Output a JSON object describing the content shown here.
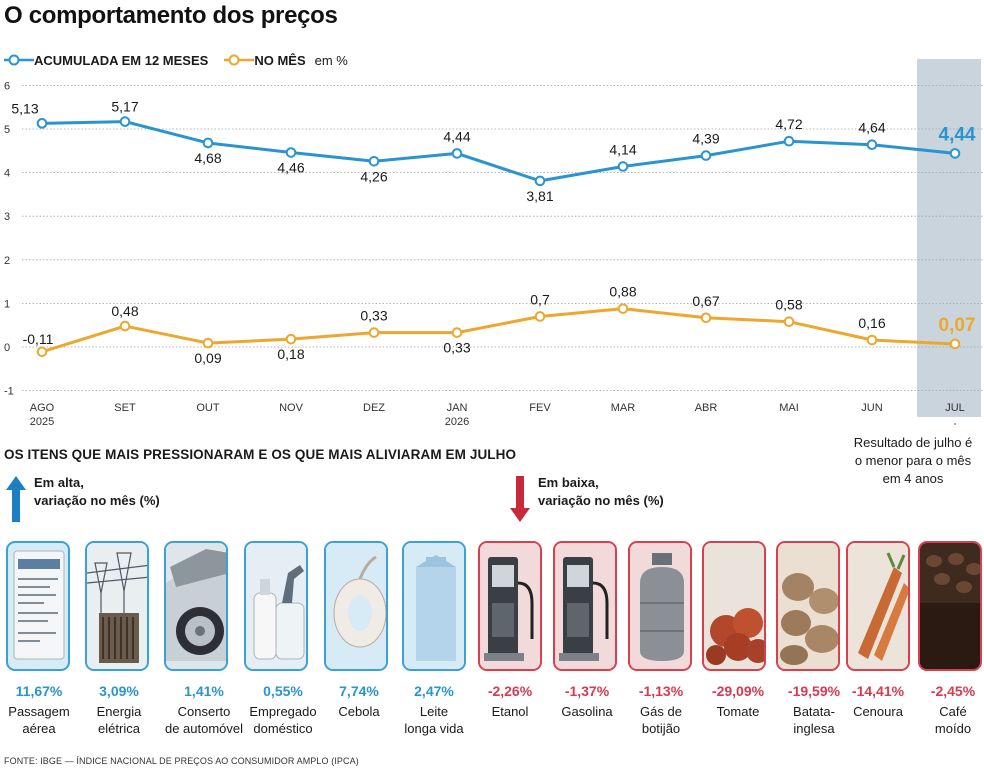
{
  "title": "O comportamento dos preços",
  "legend": {
    "accumulated": "ACUMULADA EM 12 MESES",
    "monthly": "NO MÊS",
    "unit": "em %"
  },
  "colors": {
    "accumulated": "#2a94cf",
    "monthly": "#eda72e",
    "highlight_band": "#c9d4dc",
    "up": "#2a94cf",
    "down": "#d83a4f"
  },
  "chart_data": {
    "type": "line",
    "x": [
      "AGO",
      "SET",
      "OUT",
      "NOV",
      "DEZ",
      "JAN",
      "FEV",
      "MAR",
      "ABR",
      "MAI",
      "JUN",
      "JUL"
    ],
    "x_sublabels": [
      "2025",
      "",
      "",
      "",
      "",
      "2026",
      "",
      "",
      "",
      "",
      "",
      ""
    ],
    "series": [
      {
        "name": "ACUMULADA EM 12 MESES",
        "values": [
          5.13,
          5.17,
          4.68,
          4.46,
          4.26,
          4.44,
          3.81,
          4.14,
          4.39,
          4.72,
          4.64,
          4.44
        ],
        "labels": [
          "5,13",
          "5,17",
          "4,68",
          "4,46",
          "4,26",
          "4,44",
          "3,81",
          "4,14",
          "4,39",
          "4,72",
          "4,64",
          "4,44"
        ]
      },
      {
        "name": "NO MÊS",
        "values": [
          -0.11,
          0.48,
          0.09,
          0.18,
          0.33,
          0.33,
          0.7,
          0.88,
          0.67,
          0.58,
          0.16,
          0.07
        ],
        "labels": [
          "-0,11",
          "0,48",
          "0,09",
          "0,18",
          "0,33",
          "0,33",
          "0,7",
          "0,88",
          "0,67",
          "0,58",
          "0,16",
          "0,07"
        ]
      }
    ],
    "yticks": [
      6,
      5,
      4,
      3,
      2,
      1,
      0,
      -1
    ],
    "ylim": [
      -1,
      6
    ],
    "grid": true,
    "highlight": "JUL"
  },
  "note": [
    "Resultado de julho é",
    "o menor para o mês",
    "em 4 anos"
  ],
  "section_title": "OS ITENS QUE MAIS PRESSIONARAM E OS QUE MAIS ALIVIARAM EM JULHO",
  "up_label": [
    "Em alta,",
    "variação no mês (%)"
  ],
  "down_label": [
    "Em baixa,",
    "variação no mês (%)"
  ],
  "items": [
    {
      "dir": "up",
      "pct": "11,67%",
      "label": [
        "Passagem",
        "aérea"
      ],
      "icon": "boarding-pass-icon"
    },
    {
      "dir": "up",
      "pct": "3,09%",
      "label": [
        "Energia",
        "elétrica"
      ],
      "icon": "power-substation-icon"
    },
    {
      "dir": "up",
      "pct": "1,41%",
      "label": [
        "Conserto",
        "de automóvel"
      ],
      "icon": "car-icon"
    },
    {
      "dir": "up",
      "pct": "0,55%",
      "label": [
        "Empregado",
        "doméstico"
      ],
      "icon": "cleaning-products-icon"
    },
    {
      "dir": "up",
      "pct": "7,74%",
      "label": [
        "Cebola"
      ],
      "icon": "onion-icon"
    },
    {
      "dir": "up",
      "pct": "2,47%",
      "label": [
        "Leite",
        "longa vida"
      ],
      "icon": "milk-carton-icon"
    },
    {
      "dir": "down",
      "pct": "-2,26%",
      "label": [
        "Etanol"
      ],
      "icon": "fuel-pump-icon"
    },
    {
      "dir": "down",
      "pct": "-1,37%",
      "label": [
        "Gasolina"
      ],
      "icon": "fuel-pump-icon"
    },
    {
      "dir": "down",
      "pct": "-1,13%",
      "label": [
        "Gás de",
        "botijão"
      ],
      "icon": "gas-cylinder-icon"
    },
    {
      "dir": "down",
      "pct": "-29,09%",
      "label": [
        "Tomate"
      ],
      "icon": "tomato-icon"
    },
    {
      "dir": "down",
      "pct": "-19,59%",
      "label": [
        "Batata-",
        "inglesa"
      ],
      "icon": "potato-icon"
    },
    {
      "dir": "down",
      "pct": "-14,41%",
      "label": [
        "Cenoura"
      ],
      "icon": "carrot-icon"
    },
    {
      "dir": "down",
      "pct": "-2,45%",
      "label": [
        "Café",
        "moído"
      ],
      "icon": "coffee-beans-icon"
    }
  ],
  "source": "FONTE: IBGE — ÍNDICE NACIONAL DE PREÇOS AO CONSUMIDOR AMPLO (IPCA)"
}
